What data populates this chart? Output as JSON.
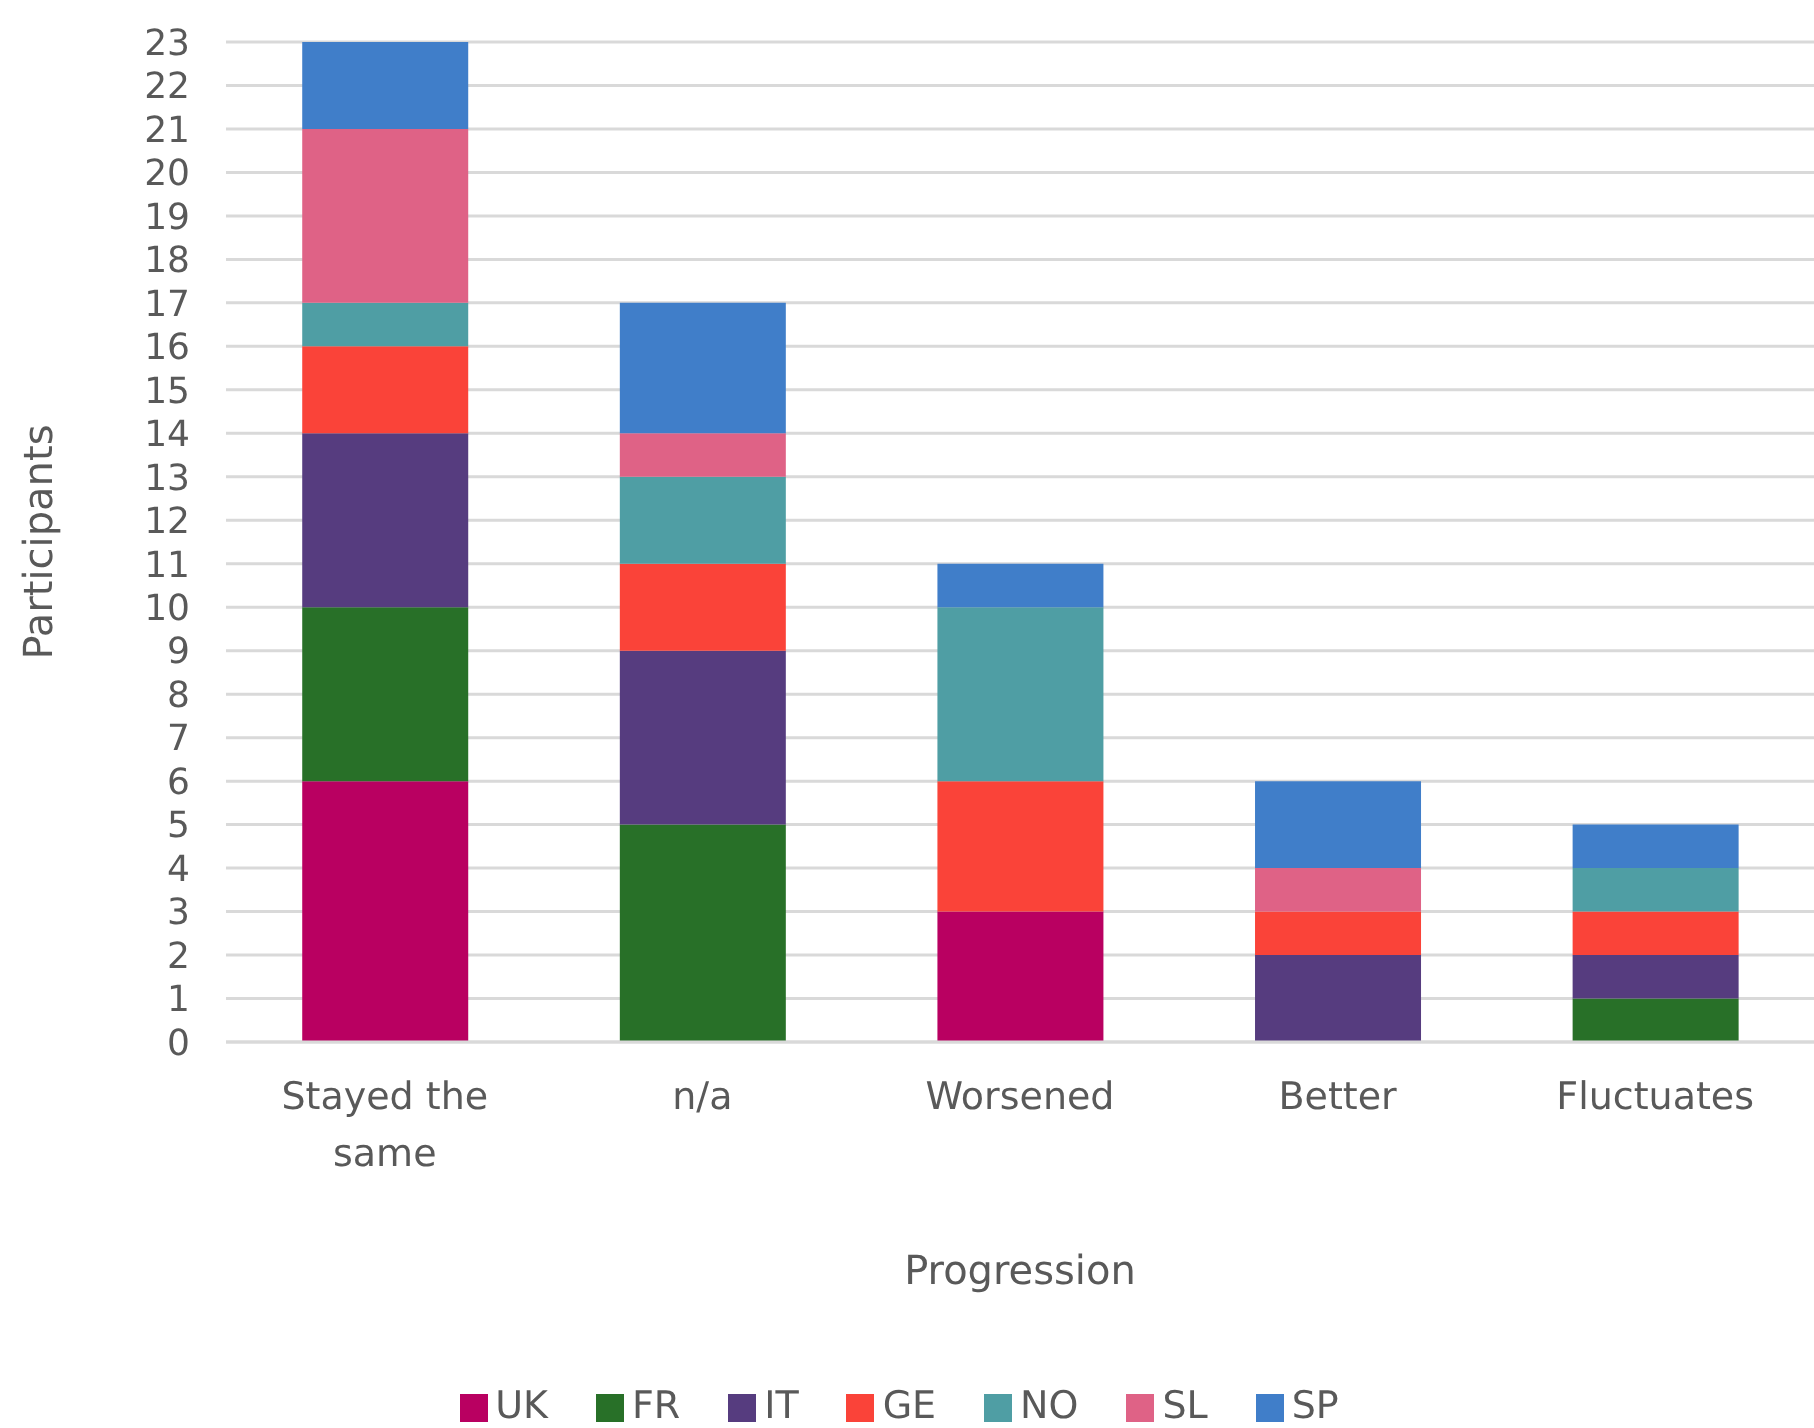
{
  "chart_data": {
    "type": "bar",
    "stacked": true,
    "categories": [
      "Stayed the same",
      "n/a",
      "Worsened",
      "Better",
      "Fluctuates"
    ],
    "xlabel": "Progression",
    "ylabel": "Participants",
    "ylim": [
      0,
      23
    ],
    "yticks": [
      0,
      1,
      2,
      3,
      4,
      5,
      6,
      7,
      8,
      9,
      10,
      11,
      12,
      13,
      14,
      15,
      16,
      17,
      18,
      19,
      20,
      21,
      22,
      23
    ],
    "grid": "y",
    "legend": "bottom",
    "series": [
      {
        "name": "UK",
        "color": "#b90061",
        "values": [
          6,
          0,
          3,
          0,
          0
        ]
      },
      {
        "name": "FR",
        "color": "#287028",
        "values": [
          4,
          5,
          0,
          0,
          1
        ]
      },
      {
        "name": "IT",
        "color": "#563c7f",
        "values": [
          4,
          4,
          0,
          2,
          1
        ]
      },
      {
        "name": "GE",
        "color": "#fa4339",
        "values": [
          2,
          2,
          3,
          1,
          1
        ]
      },
      {
        "name": "NO",
        "color": "#4f9ea4",
        "values": [
          1,
          2,
          4,
          0,
          1
        ]
      },
      {
        "name": "SL",
        "color": "#df6286",
        "values": [
          4,
          1,
          0,
          1,
          0
        ]
      },
      {
        "name": "SP",
        "color": "#407ec9",
        "values": [
          2,
          3,
          1,
          2,
          1
        ]
      }
    ]
  }
}
